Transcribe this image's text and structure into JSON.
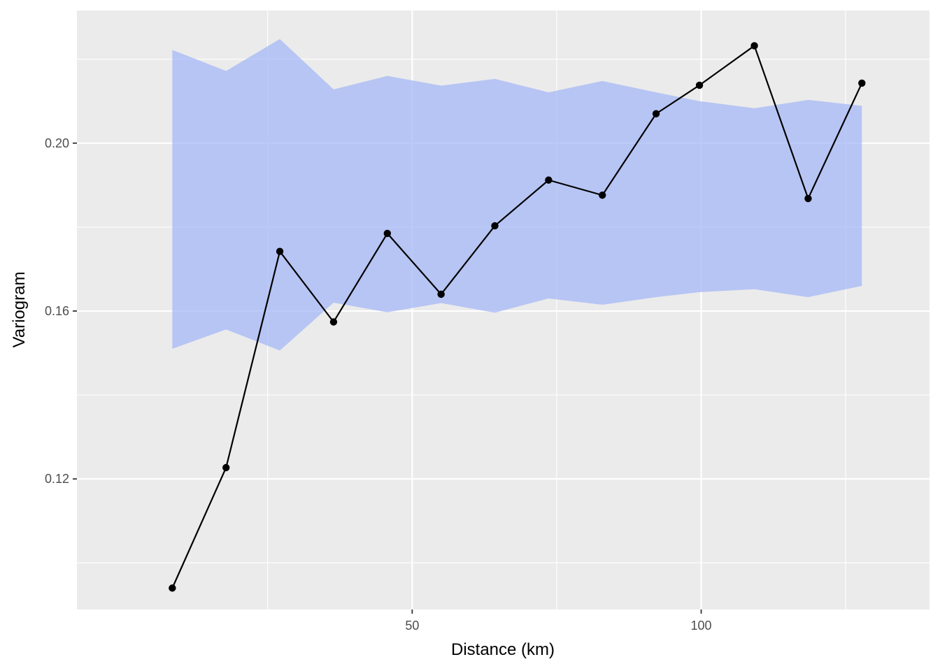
{
  "chart_data": {
    "type": "line",
    "title": "",
    "xlabel": "Distance (km)",
    "ylabel": "Variogram",
    "x": [
      8.5,
      17.8,
      27.1,
      36.4,
      45.7,
      55.0,
      64.3,
      73.6,
      82.9,
      92.2,
      99.7,
      109.2,
      118.5,
      127.8
    ],
    "series": [
      {
        "values": [
          0.094,
          0.1227,
          0.1742,
          0.1574,
          0.1785,
          0.164,
          0.1803,
          0.1912,
          0.1876,
          0.207,
          0.2138,
          0.2232,
          0.1868,
          0.2143
        ]
      }
    ],
    "band": {
      "lower": [
        0.151,
        0.1556,
        0.1506,
        0.162,
        0.1597,
        0.1619,
        0.1596,
        0.163,
        0.1615,
        0.1633,
        0.1645,
        0.1652,
        0.1633,
        0.166
      ],
      "upper": [
        0.2222,
        0.2172,
        0.2248,
        0.2128,
        0.216,
        0.2137,
        0.2153,
        0.2121,
        0.2148,
        0.2121,
        0.21,
        0.2083,
        0.2103,
        0.2089
      ]
    },
    "xlim": [
      -8,
      139.5
    ],
    "ylim": [
      0.0889,
      0.2316
    ],
    "x_ticks": [
      50,
      100
    ],
    "x_tick_labels": [
      "50",
      "100"
    ],
    "x_minor_ticks": [
      25,
      75,
      125
    ],
    "y_ticks": [
      0.12,
      0.16,
      0.2
    ],
    "y_tick_labels": [
      "0.12",
      "0.16",
      "0.20"
    ],
    "y_minor_ticks": [
      0.1,
      0.14,
      0.18,
      0.22
    ],
    "grid": true,
    "legend": "none",
    "colors": {
      "panel": "#ebebeb",
      "grid": "#ffffff",
      "band": "#a5b8f7",
      "line": "#000000",
      "point": "#000000"
    }
  }
}
